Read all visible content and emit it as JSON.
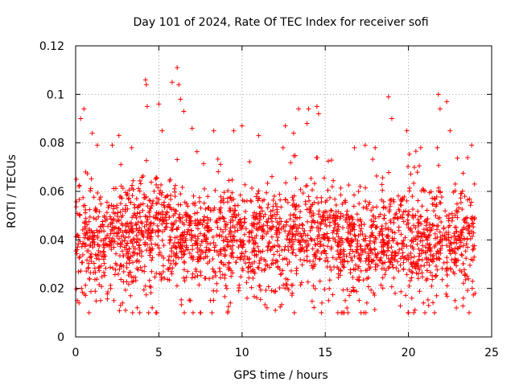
{
  "chart_data": {
    "type": "scatter",
    "title": "Day 101 of 2024, Rate Of TEC Index for receiver sofi",
    "xlabel": "GPS time / hours",
    "ylabel": "ROTI / TECUs",
    "xlim": [
      0,
      25
    ],
    "ylim": [
      0,
      0.12
    ],
    "xticks": [
      0,
      5,
      10,
      15,
      20,
      25
    ],
    "xtick_labels": [
      "0",
      "5",
      "10",
      "15",
      "20",
      "25"
    ],
    "yticks": [
      0,
      0.02,
      0.04,
      0.06,
      0.08,
      0.1,
      0.12
    ],
    "ytick_labels": [
      "0",
      "0.02",
      "0.04",
      "0.06",
      "0.08",
      "0.1",
      "0.12"
    ],
    "grid": true,
    "marker": "+",
    "color": "#ff0000",
    "series": [
      {
        "name": "ROTI",
        "description_points": [
          [
            0.1,
            0.015
          ],
          [
            0.2,
            0.014
          ],
          [
            0.3,
            0.09
          ],
          [
            0.5,
            0.094
          ],
          [
            0.6,
            0.068
          ],
          [
            1.0,
            0.084
          ],
          [
            1.3,
            0.079
          ],
          [
            1.5,
            0.015
          ],
          [
            2.2,
            0.079
          ],
          [
            2.3,
            0.015
          ],
          [
            2.6,
            0.083
          ],
          [
            2.7,
            0.013
          ],
          [
            3.0,
            0.011
          ],
          [
            3.3,
            0.017
          ],
          [
            3.7,
            0.012
          ],
          [
            4.2,
            0.106
          ],
          [
            4.25,
            0.104
          ],
          [
            4.3,
            0.095
          ],
          [
            4.6,
            0.012
          ],
          [
            5.0,
            0.096
          ],
          [
            5.2,
            0.085
          ],
          [
            5.8,
            0.105
          ],
          [
            6.1,
            0.111
          ],
          [
            6.2,
            0.104
          ],
          [
            6.3,
            0.098
          ],
          [
            6.5,
            0.093
          ],
          [
            6.9,
            0.015
          ],
          [
            7.0,
            0.086
          ],
          [
            8.1,
            0.015
          ],
          [
            8.3,
            0.085
          ],
          [
            9.3,
            0.014
          ],
          [
            9.5,
            0.085
          ],
          [
            9.8,
            0.019
          ],
          [
            10.0,
            0.087
          ],
          [
            10.3,
            0.016
          ],
          [
            11.0,
            0.083
          ],
          [
            11.5,
            0.012
          ],
          [
            12.0,
            0.011
          ],
          [
            12.6,
            0.087
          ],
          [
            13.1,
            0.084
          ],
          [
            13.4,
            0.094
          ],
          [
            13.9,
            0.088
          ],
          [
            14.0,
            0.094
          ],
          [
            14.5,
            0.095
          ],
          [
            14.6,
            0.092
          ],
          [
            14.8,
            0.014
          ],
          [
            15.2,
            0.015
          ],
          [
            16.2,
            0.015
          ],
          [
            17.4,
            0.079
          ],
          [
            17.5,
            0.014
          ],
          [
            18.0,
            0.078
          ],
          [
            18.8,
            0.099
          ],
          [
            19.0,
            0.09
          ],
          [
            19.2,
            0.018
          ],
          [
            19.9,
            0.085
          ],
          [
            20.2,
            0.016
          ],
          [
            20.9,
            0.014
          ],
          [
            21.8,
            0.1
          ],
          [
            21.9,
            0.094
          ],
          [
            22.3,
            0.097
          ],
          [
            22.5,
            0.085
          ],
          [
            22.8,
            0.015
          ],
          [
            23.3,
            0.016
          ],
          [
            23.8,
            0.079
          ],
          [
            24.0,
            0.018
          ]
        ]
      }
    ]
  }
}
